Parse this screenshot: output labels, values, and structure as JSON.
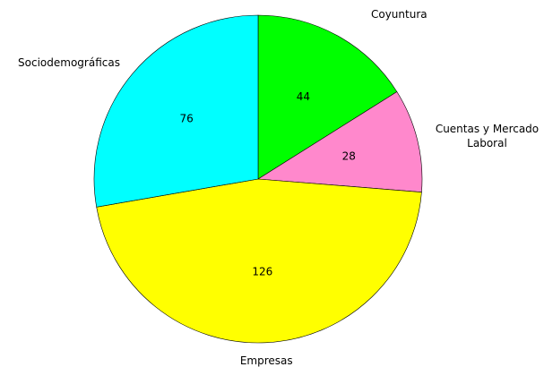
{
  "chart_data": {
    "type": "pie",
    "categories": [
      "Coyuntura",
      "Cuentas y Mercado Laboral",
      "Empresas",
      "Sociodemográficas"
    ],
    "values": [
      44,
      28,
      126,
      76
    ],
    "colors": [
      "#00ff00",
      "#ff88cc",
      "#ffff00",
      "#00ffff"
    ]
  }
}
